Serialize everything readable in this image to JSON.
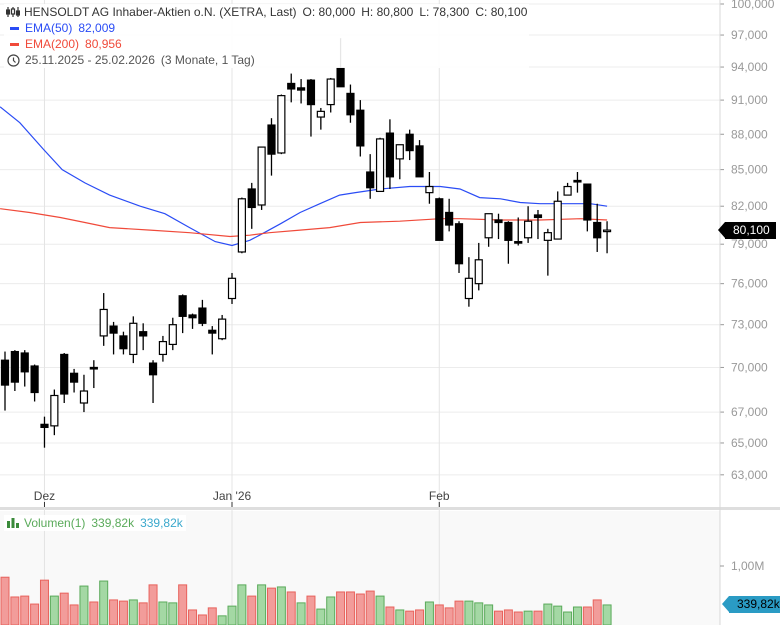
{
  "legend": {
    "instrument": "HENSOLDT AG Inhaber-Aktien o.N. (XETRA, Last)",
    "open": "O: 80,000",
    "high": "H: 80,800",
    "low": "L: 78,300",
    "close": "C: 80,100",
    "ema50_label": "EMA(50)",
    "ema50_value": "82,009",
    "ema200_label": "EMA(200)",
    "ema200_value": "80,956",
    "range": "25.11.2025 - 25.02.2026",
    "range_duration": "(3 Monate, 1 Tag)"
  },
  "volume_legend": {
    "label": "Volumen(1)",
    "value1": "339,82k",
    "value2": "339,82k"
  },
  "last_price_tag": "80,100",
  "last_volume_tag": "339,82k",
  "colors": {
    "ema50": "#2a4cf5",
    "ema200": "#f04a3a",
    "vol_up_fill": "#a4d8a4",
    "vol_up_border": "#5aaa5a",
    "vol_down_fill": "#f29c9a",
    "vol_down_border": "#e8625c",
    "price_tag": "#000000",
    "volume_tag": "#2a9bc4"
  },
  "chart_data": {
    "type": "candlestick",
    "title": "HENSOLDT AG Inhaber-Aktien o.N. (XETRA, Last)",
    "y_scale": "log",
    "ylim": [
      62,
      100
    ],
    "y_ticks": [
      100,
      97,
      94,
      91,
      88,
      85,
      82,
      79,
      76,
      73,
      70,
      67,
      65,
      63
    ],
    "y_tick_labels": [
      "100,000",
      "97,000",
      "94,000",
      "91,000",
      "88,000",
      "85,000",
      "82,000",
      "79,000",
      "76,000",
      "73,000",
      "70,000",
      "67,000",
      "65,000",
      "63,000"
    ],
    "x_ticks": [
      {
        "index": 4,
        "label": "Dez"
      },
      {
        "index": 23,
        "label": "Jan '26"
      },
      {
        "index": 44,
        "label": "Feb"
      }
    ],
    "grid": true,
    "ohlc": [
      [
        70.5,
        71.1,
        67.1,
        68.8
      ],
      [
        71.1,
        71.2,
        68.4,
        69.0
      ],
      [
        71.0,
        71.2,
        68.7,
        69.7
      ],
      [
        70.1,
        70.2,
        67.7,
        68.3
      ],
      [
        66.2,
        66.7,
        64.7,
        66.0
      ],
      [
        66.1,
        68.5,
        65.5,
        68.1
      ],
      [
        70.9,
        71.0,
        67.6,
        68.2
      ],
      [
        69.6,
        69.9,
        68.3,
        69.0
      ],
      [
        67.6,
        69.5,
        67.0,
        68.4
      ],
      [
        70.0,
        70.5,
        68.6,
        69.9
      ],
      [
        72.2,
        75.3,
        71.5,
        74.1
      ],
      [
        72.9,
        73.2,
        70.9,
        72.4
      ],
      [
        72.2,
        72.5,
        70.9,
        71.3
      ],
      [
        70.9,
        73.6,
        70.3,
        73.1
      ],
      [
        72.5,
        73.1,
        71.2,
        72.2
      ],
      [
        70.3,
        70.5,
        67.6,
        69.5
      ],
      [
        70.9,
        72.2,
        70.4,
        71.8
      ],
      [
        71.6,
        73.5,
        71.2,
        73.0
      ],
      [
        75.1,
        75.2,
        72.4,
        73.6
      ],
      [
        73.7,
        73.8,
        72.7,
        73.5
      ],
      [
        74.2,
        74.8,
        72.9,
        73.1
      ],
      [
        72.6,
        72.9,
        70.9,
        72.4
      ],
      [
        72.0,
        73.7,
        71.9,
        73.4
      ],
      [
        74.9,
        76.8,
        74.5,
        76.4
      ],
      [
        78.4,
        82.7,
        78.3,
        82.6
      ],
      [
        83.4,
        83.9,
        80.2,
        81.9
      ],
      [
        82.1,
        86.9,
        81.7,
        86.9
      ],
      [
        88.8,
        89.4,
        84.5,
        86.3
      ],
      [
        86.4,
        91.5,
        86.3,
        91.4
      ],
      [
        92.5,
        93.4,
        90.8,
        92.0
      ],
      [
        92.1,
        92.9,
        90.7,
        91.9
      ],
      [
        92.8,
        92.9,
        87.8,
        90.6
      ],
      [
        89.5,
        90.3,
        88.4,
        90.0
      ],
      [
        90.6,
        93.0,
        89.9,
        92.9
      ],
      [
        93.9,
        96.7,
        92.2,
        92.2
      ],
      [
        91.6,
        92.4,
        89.0,
        89.7
      ],
      [
        90.1,
        91.0,
        86.1,
        87.0
      ],
      [
        84.8,
        86.3,
        82.6,
        83.5
      ],
      [
        83.2,
        87.7,
        83.2,
        87.6
      ],
      [
        88.1,
        89.3,
        83.4,
        84.4
      ],
      [
        85.9,
        87.1,
        84.2,
        87.1
      ],
      [
        88.0,
        88.4,
        85.8,
        86.6
      ],
      [
        87.0,
        87.5,
        84.4,
        84.4
      ],
      [
        83.1,
        84.8,
        82.2,
        83.6
      ],
      [
        82.6,
        82.7,
        79.3,
        79.3
      ],
      [
        81.5,
        82.6,
        80.0,
        80.5
      ],
      [
        80.6,
        80.8,
        76.8,
        77.5
      ],
      [
        74.9,
        78.0,
        74.3,
        76.4
      ],
      [
        76.0,
        79.1,
        75.5,
        77.8
      ],
      [
        79.5,
        81.4,
        78.8,
        81.4
      ],
      [
        80.9,
        81.4,
        79.4,
        80.7
      ],
      [
        80.7,
        80.8,
        77.5,
        79.3
      ],
      [
        79.2,
        81.1,
        78.9,
        79.1
      ],
      [
        79.5,
        82.0,
        79.1,
        80.8
      ],
      [
        81.3,
        81.7,
        79.4,
        81.1
      ],
      [
        79.3,
        80.2,
        76.6,
        79.9
      ],
      [
        79.4,
        83.2,
        79.4,
        82.4
      ],
      [
        82.9,
        83.9,
        83.0,
        83.6
      ],
      [
        84.1,
        84.8,
        83.1,
        84.0
      ],
      [
        83.8,
        83.8,
        80.0,
        80.9
      ],
      [
        80.7,
        82.2,
        78.4,
        79.5
      ],
      [
        80.0,
        80.8,
        78.3,
        80.1
      ]
    ],
    "series": [
      {
        "name": "EMA(50)",
        "points": [
          [
            -0.5,
            90.4
          ],
          [
            1.5,
            89.0
          ],
          [
            3.9,
            86.7
          ],
          [
            5.8,
            85.0
          ],
          [
            8.1,
            83.9
          ],
          [
            10.6,
            82.9
          ],
          [
            13.7,
            82.0
          ],
          [
            16.2,
            81.4
          ],
          [
            18.7,
            80.3
          ],
          [
            21.3,
            79.2
          ],
          [
            23,
            78.9
          ],
          [
            24.8,
            79.3
          ],
          [
            25.8,
            79.7
          ],
          [
            27.9,
            80.6
          ],
          [
            29.9,
            81.5
          ],
          [
            31.9,
            82.2
          ],
          [
            33.9,
            82.9
          ],
          [
            35.5,
            83.1
          ],
          [
            38,
            83.4
          ],
          [
            41,
            83.6
          ],
          [
            44.1,
            83.6
          ],
          [
            46.1,
            83.4
          ],
          [
            48.1,
            82.7
          ],
          [
            50.2,
            82.6
          ],
          [
            52.2,
            82.3
          ],
          [
            54.2,
            82.2
          ],
          [
            57.2,
            82.2
          ],
          [
            59.3,
            82.2
          ],
          [
            61,
            82.0
          ]
        ]
      },
      {
        "name": "EMA(200)",
        "points": [
          [
            -0.5,
            81.8
          ],
          [
            2.5,
            81.5
          ],
          [
            5.6,
            81.1
          ],
          [
            8.1,
            80.7
          ],
          [
            10.6,
            80.3
          ],
          [
            14.7,
            80.1
          ],
          [
            18.7,
            79.9
          ],
          [
            22.8,
            79.6
          ],
          [
            24.8,
            79.7
          ],
          [
            26.8,
            79.9
          ],
          [
            29.9,
            80.1
          ],
          [
            32.9,
            80.3
          ],
          [
            36,
            80.7
          ],
          [
            40,
            80.8
          ],
          [
            44.1,
            81.0
          ],
          [
            46.1,
            81.0
          ],
          [
            50.2,
            80.9
          ],
          [
            54.2,
            80.9
          ],
          [
            58.3,
            81.0
          ],
          [
            61,
            80.9
          ]
        ]
      }
    ],
    "volume": {
      "ylabel_ticks": [
        {
          "value": 1000,
          "label": "1,00M"
        }
      ],
      "unit": "k",
      "values": [
        810,
        475,
        490,
        355,
        760,
        490,
        540,
        340,
        660,
        390,
        745,
        425,
        405,
        425,
        375,
        680,
        390,
        375,
        680,
        255,
        170,
        290,
        155,
        320,
        680,
        490,
        680,
        625,
        645,
        560,
        375,
        490,
        270,
        475,
        560,
        560,
        525,
        575,
        490,
        305,
        255,
        235,
        255,
        390,
        340,
        290,
        405,
        405,
        375,
        340,
        235,
        255,
        220,
        235,
        235,
        355,
        320,
        220,
        305,
        305,
        425,
        340
      ],
      "direction": [
        "d",
        "d",
        "d",
        "d",
        "d",
        "u",
        "d",
        "d",
        "u",
        "d",
        "u",
        "d",
        "d",
        "u",
        "d",
        "d",
        "u",
        "u",
        "d",
        "d",
        "d",
        "d",
        "u",
        "u",
        "u",
        "d",
        "u",
        "d",
        "u",
        "d",
        "u",
        "d",
        "u",
        "u",
        "d",
        "d",
        "d",
        "d",
        "u",
        "d",
        "u",
        "d",
        "d",
        "u",
        "d",
        "d",
        "d",
        "u",
        "u",
        "u",
        "d",
        "d",
        "d",
        "u",
        "d",
        "u",
        "u",
        "u",
        "u",
        "d",
        "d",
        "u"
      ]
    }
  }
}
